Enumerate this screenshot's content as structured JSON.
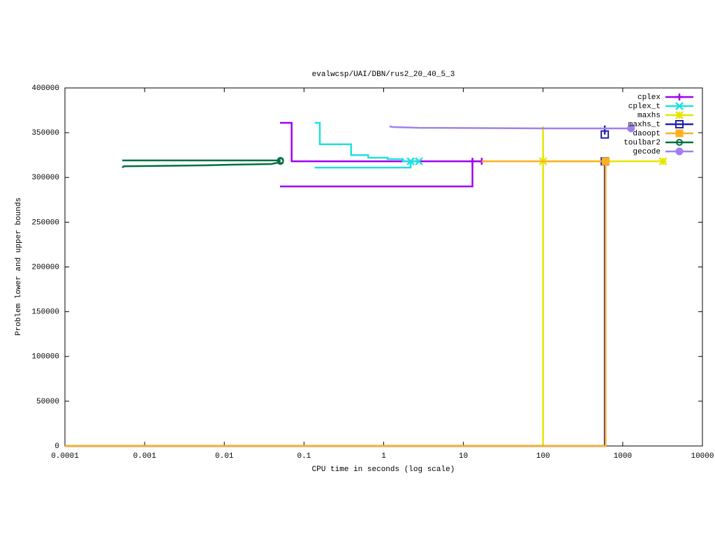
{
  "chart_data": {
    "type": "line",
    "title": "evalwcsp/UAI/DBN/rus2_20_40_5_3",
    "xlabel": "CPU time in seconds (log scale)",
    "ylabel": "Problem lower and upper bounds",
    "xlog": true,
    "xlim": [
      0.0001,
      10000
    ],
    "xticks": [
      0.0001,
      0.001,
      0.01,
      0.1,
      1,
      10,
      100,
      1000,
      10000
    ],
    "ylim": [
      0,
      400000
    ],
    "yticks": [
      0,
      50000,
      100000,
      150000,
      200000,
      250000,
      300000,
      350000,
      400000
    ],
    "legend": "top-right",
    "series": [
      {
        "name": "cplex",
        "color": "#a000f0",
        "marker": "plus",
        "x": [
          0.05,
          0.07,
          0.07,
          17,
          null,
          0.05,
          13,
          13
        ],
        "values": [
          361000,
          361000,
          318000,
          318000,
          null,
          290000,
          290000,
          318000
        ]
      },
      {
        "name": "cplex_t",
        "color": "#20e0e0",
        "marker": "x",
        "x": [
          0.136,
          0.158,
          0.158,
          0.39,
          0.39,
          0.64,
          0.64,
          1.12,
          1.12,
          1.75,
          1.75,
          2.77,
          null,
          0.136,
          2.18,
          2.18
        ],
        "values": [
          361000,
          361000,
          337000,
          337000,
          325000,
          325000,
          322000,
          322000,
          320500,
          320500,
          318000,
          318000,
          null,
          311000,
          311000,
          318000
        ]
      },
      {
        "name": "maxhs",
        "color": "#e6e600",
        "marker": "star",
        "x": [
          100,
          100,
          3200,
          null,
          0.0001,
          100,
          100
        ],
        "values": [
          357000,
          318000,
          318000,
          null,
          0,
          0,
          318000
        ]
      },
      {
        "name": "maxhs_t",
        "color": "#2020b0",
        "marker": "square-open",
        "x": [
          595,
          595,
          null,
          0.0001,
          595,
          595
        ],
        "values": [
          358000,
          348000,
          null,
          0,
          0,
          318000
        ]
      },
      {
        "name": "daoopt",
        "color": "#ffb020",
        "marker": "square",
        "x": [
          17,
          610,
          null,
          0.0001,
          610,
          610
        ],
        "values": [
          318000,
          318000,
          null,
          0,
          0,
          318000
        ]
      },
      {
        "name": "toulbar2",
        "color": "#007040",
        "marker": "circle-open",
        "x": [
          0.000524,
          0.0273,
          0.0507,
          null,
          0.000524,
          0.00055,
          0.0059,
          0.0119,
          0.039,
          0.047,
          0.0507
        ],
        "values": [
          319000,
          319000,
          319000,
          null,
          311000,
          312500,
          313500,
          314200,
          315000,
          316500,
          318000
        ]
      },
      {
        "name": "gecode",
        "color": "#a080f0",
        "marker": "circle",
        "x": [
          1.18,
          1.3,
          2.78,
          129,
          1270
        ],
        "values": [
          357000,
          356300,
          355500,
          354800,
          354800
        ]
      }
    ]
  }
}
